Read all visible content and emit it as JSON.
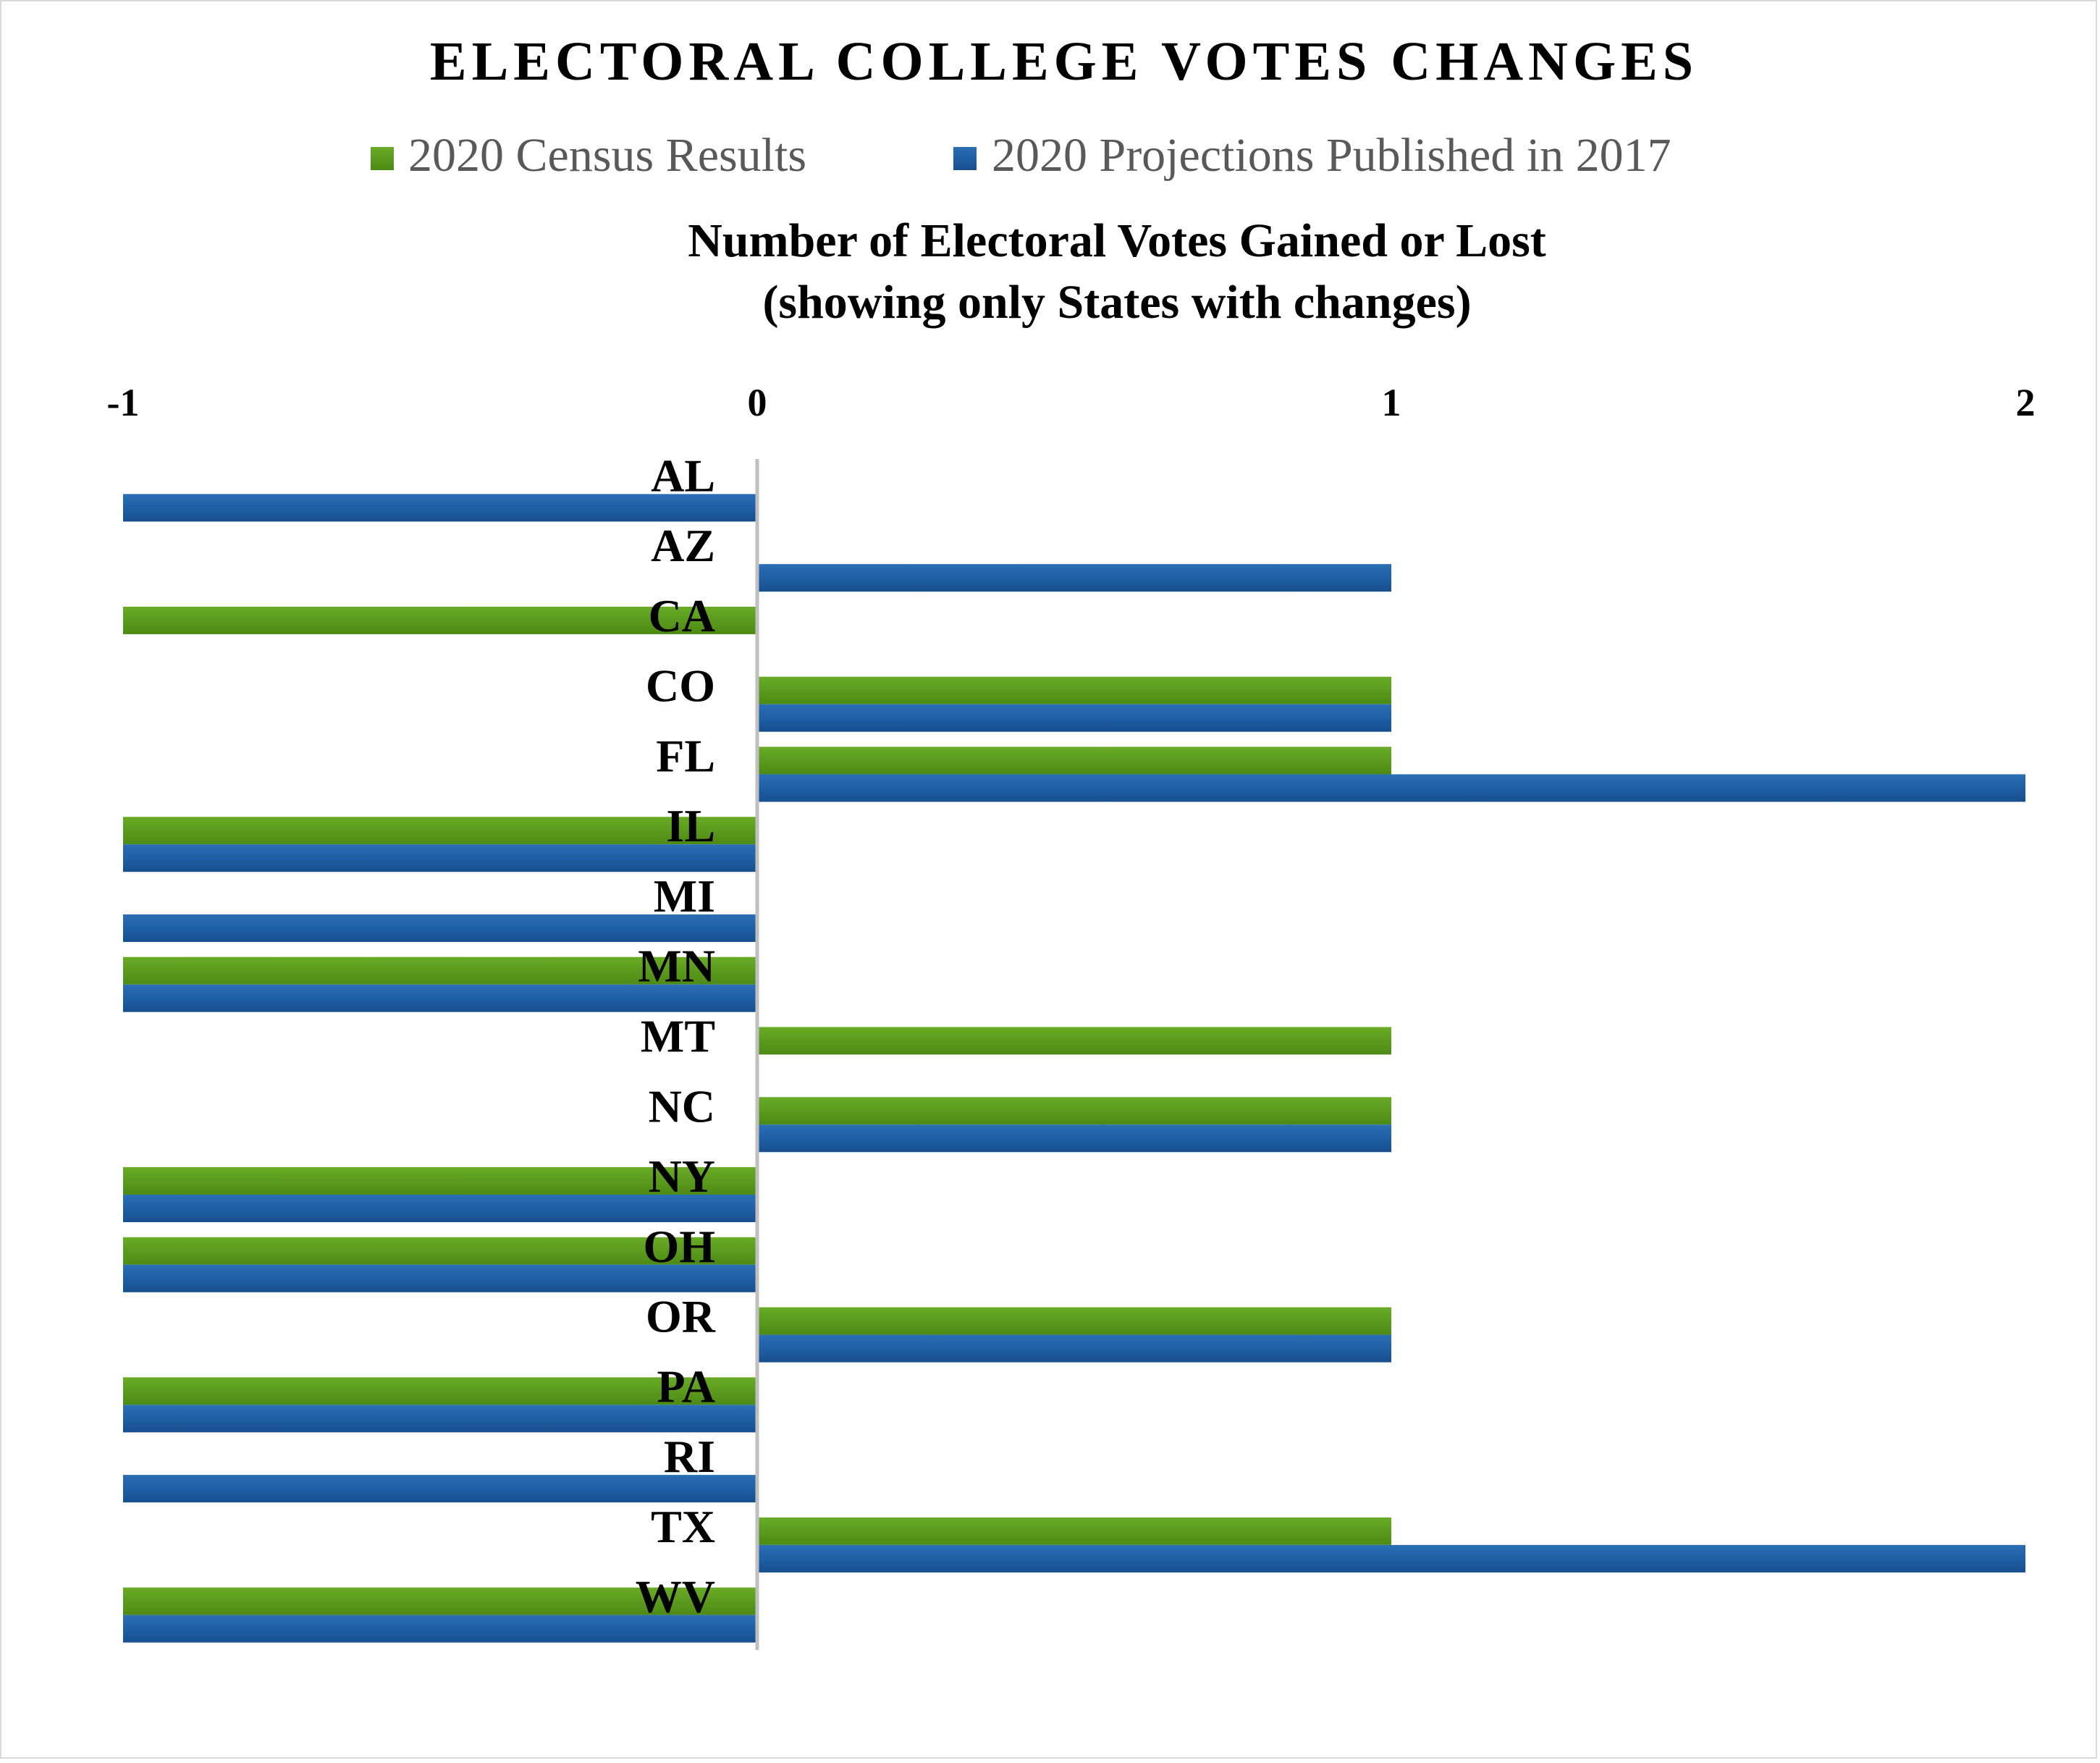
{
  "chart_data": {
    "type": "bar",
    "orientation": "horizontal",
    "title": "ELECTORAL COLLEGE VOTES CHANGES",
    "subtitle": [
      "Number of Electoral Votes Gained or Lost",
      "(showing only States with changes)"
    ],
    "categories": [
      "AL",
      "AZ",
      "CA",
      "CO",
      "FL",
      "IL",
      "MI",
      "MN",
      "MT",
      "NC",
      "NY",
      "OH",
      "OR",
      "PA",
      "RI",
      "TX",
      "WV"
    ],
    "series": [
      {
        "name": "2020 Census Results",
        "color": "#5b9a1e",
        "values": [
          0,
          0,
          -1,
          1,
          1,
          -1,
          0,
          -1,
          1,
          1,
          -1,
          -1,
          1,
          -1,
          0,
          1,
          -1
        ]
      },
      {
        "name": "2020 Projections Published in 2017",
        "color": "#1f5fa4",
        "values": [
          -1,
          1,
          0,
          1,
          2,
          -1,
          -1,
          -1,
          0,
          1,
          -1,
          -1,
          1,
          -1,
          -1,
          2,
          -1
        ]
      }
    ],
    "xlim": [
      -1,
      2
    ],
    "xticks": [
      "-1",
      "0",
      "1",
      "2"
    ],
    "xaxis_position": "top",
    "legend_position": "top",
    "grid": false
  }
}
